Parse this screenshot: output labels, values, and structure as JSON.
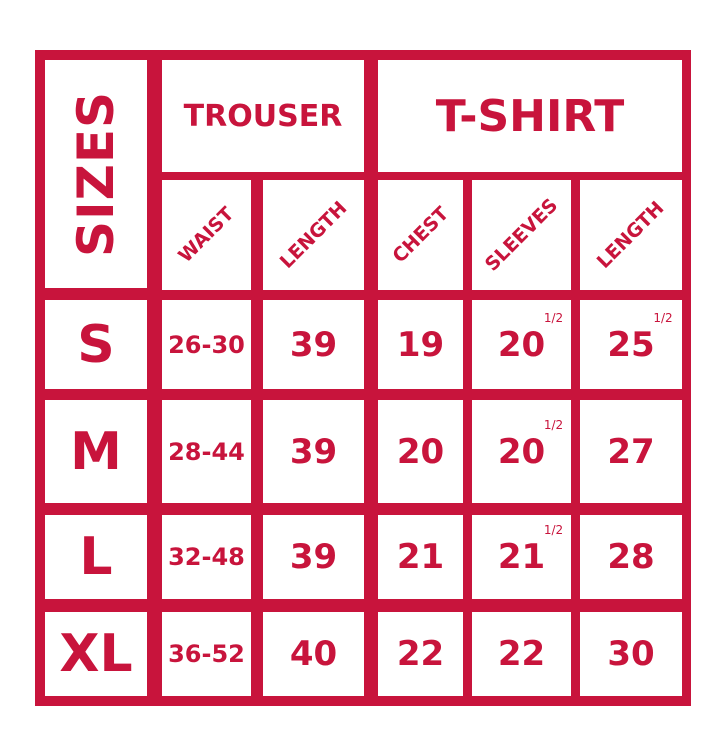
{
  "header": {
    "sizes_label": "SIZES",
    "groups": [
      {
        "label": "TROUSER"
      },
      {
        "label": "T-SHIRT"
      }
    ],
    "columns": [
      "WAIST",
      "LENGTH",
      "CHEST",
      "SLEEVES",
      "LENGTH"
    ]
  },
  "rows": [
    {
      "size": "S",
      "values": [
        "26-30",
        "39",
        "19",
        "20",
        "25"
      ],
      "fractions": [
        "",
        "",
        "",
        "1/2",
        "1/2"
      ]
    },
    {
      "size": "M",
      "values": [
        "28-44",
        "39",
        "20",
        "20",
        "27"
      ],
      "fractions": [
        "",
        "",
        "",
        "1/2",
        ""
      ]
    },
    {
      "size": "L",
      "values": [
        "32-48",
        "39",
        "21",
        "21",
        "28"
      ],
      "fractions": [
        "",
        "",
        "",
        "1/2",
        ""
      ]
    },
    {
      "size": "XL",
      "values": [
        "36-52",
        "40",
        "22",
        "22",
        "30"
      ],
      "fractions": [
        "",
        "",
        "",
        "",
        ""
      ]
    }
  ],
  "colors": {
    "accent": "#c8143c",
    "background": "#ffffff"
  }
}
